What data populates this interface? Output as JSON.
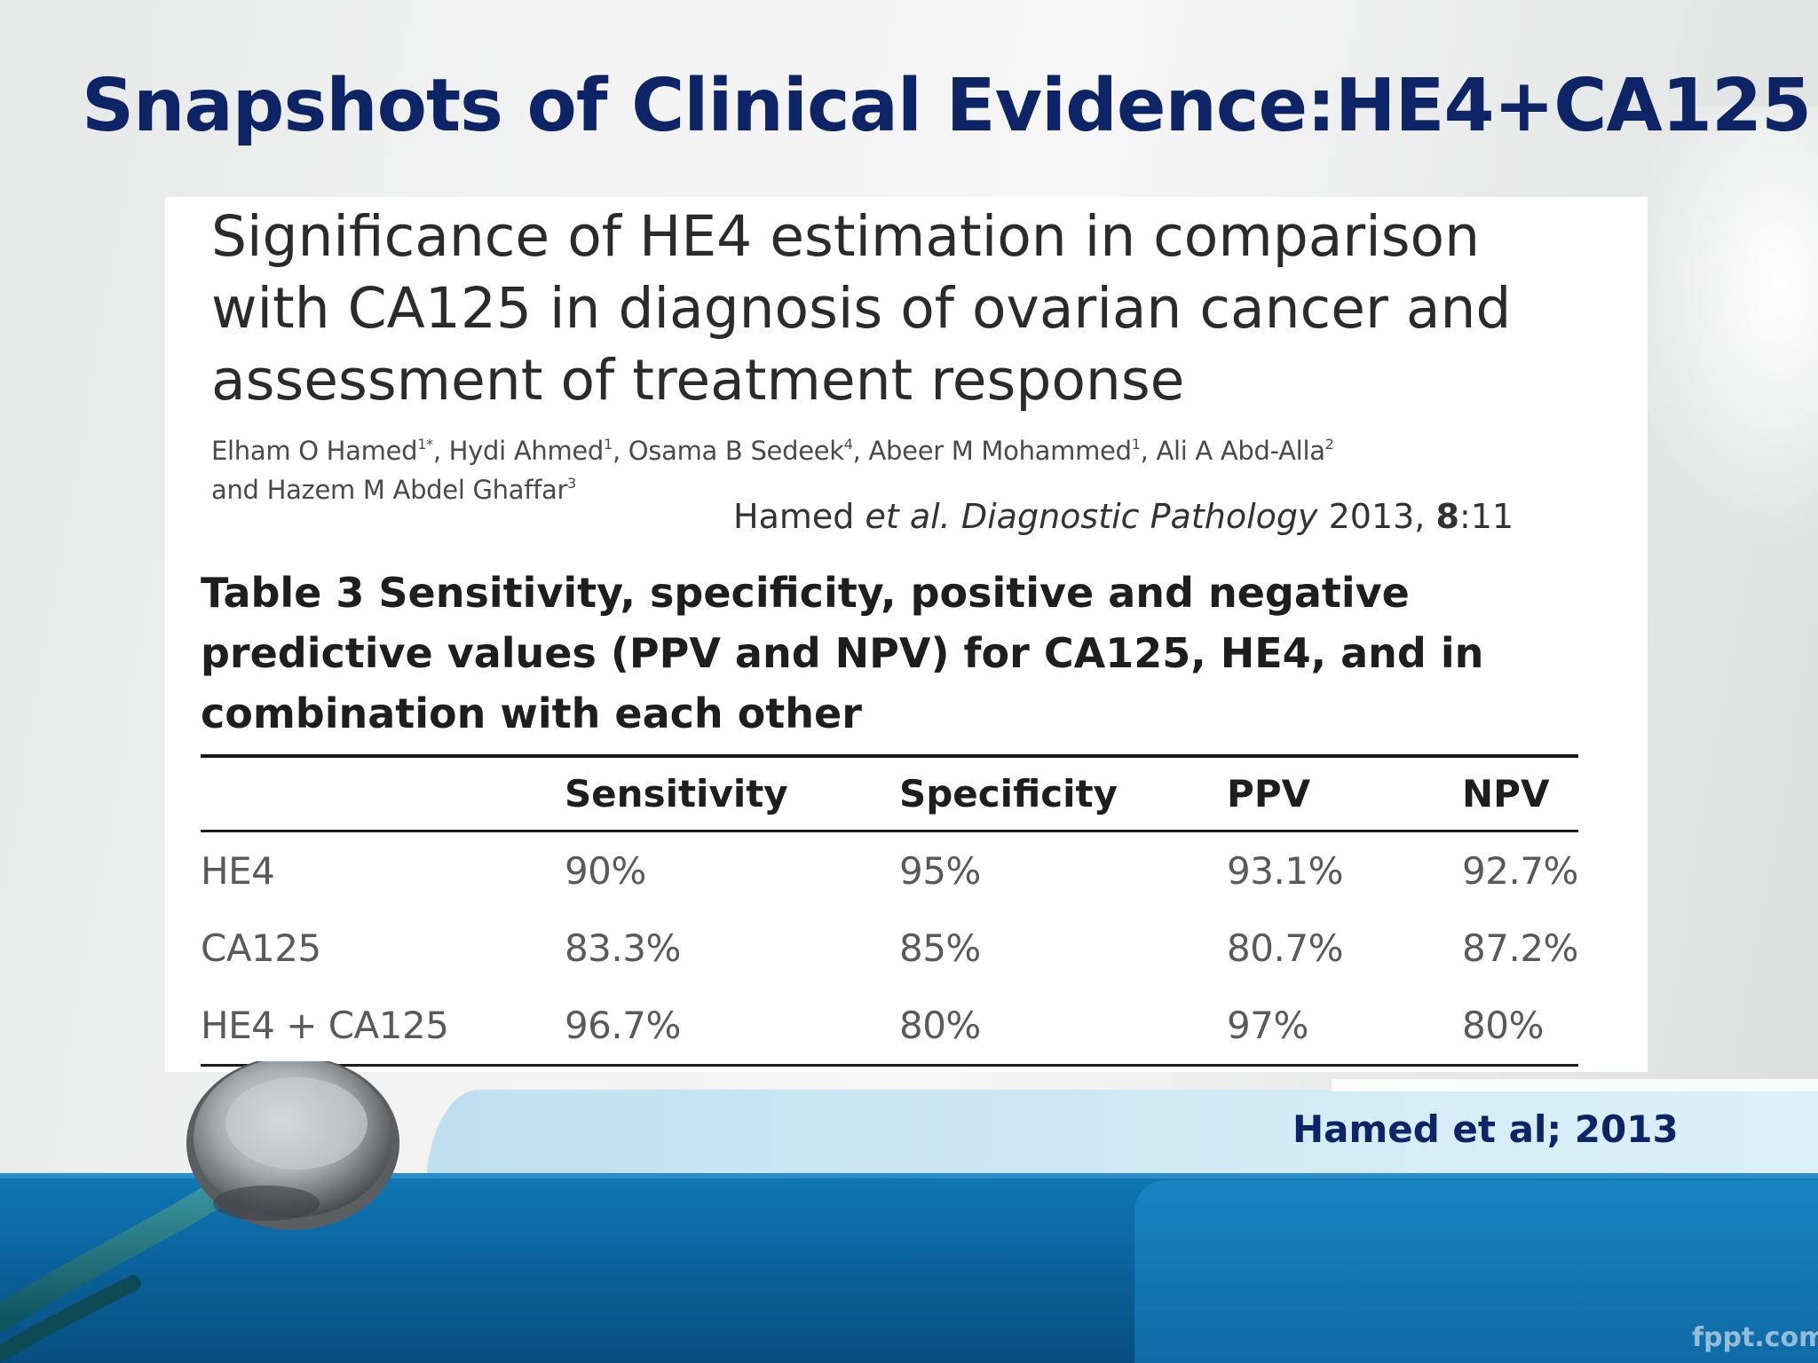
{
  "slide": {
    "title": "Snapshots of Clinical Evidence:HE4+CA125"
  },
  "paper": {
    "title_lines": [
      "Significance of HE4 estimation in comparison",
      "with CA125 in diagnosis of ovarian cancer and",
      "assessment of treatment response"
    ],
    "authors": [
      {
        "name": "Elham O Hamed",
        "sup": "1*",
        "sep": ", "
      },
      {
        "name": "Hydi Ahmed",
        "sup": "1",
        "sep": ", "
      },
      {
        "name": "Osama B Sedeek",
        "sup": "4",
        "sep": ", "
      },
      {
        "name": "Abeer M Mohammed",
        "sup": "1",
        "sep": ", "
      },
      {
        "name": "Ali A Abd-Alla",
        "sup": "2",
        "sep": " "
      },
      {
        "name": "and Hazem M Abdel Ghaffar",
        "sup": "3",
        "sep": ""
      }
    ],
    "citation": {
      "authors": "Hamed",
      "etal": "et al.",
      "journal": "Diagnostic Pathology",
      "year": "2013,",
      "volume": "8",
      "article": ":11"
    }
  },
  "table": {
    "caption": "Table 3 Sensitivity, specificity, positive and negative predictive values (PPV and NPV) for CA125, HE4, and in combination with each other",
    "columns": [
      "",
      "Sensitivity",
      "Specificity",
      "PPV",
      "NPV"
    ],
    "rows": [
      [
        "HE4",
        "90%",
        "95%",
        "93.1%",
        "92.7%"
      ],
      [
        "CA125",
        "83.3%",
        "85%",
        "80.7%",
        "87.2%"
      ],
      [
        "HE4 + CA125",
        "96.7%",
        "80%",
        "97%",
        "80%"
      ]
    ]
  },
  "footer": {
    "citation": "Hamed et al; 2013",
    "watermark": "fppt.com"
  },
  "colors": {
    "title": "#0d2466",
    "band_blue": "#0a5f98",
    "band_pale": "#cfe8f3"
  },
  "icons": {
    "stethoscope": "stethoscope-icon"
  }
}
